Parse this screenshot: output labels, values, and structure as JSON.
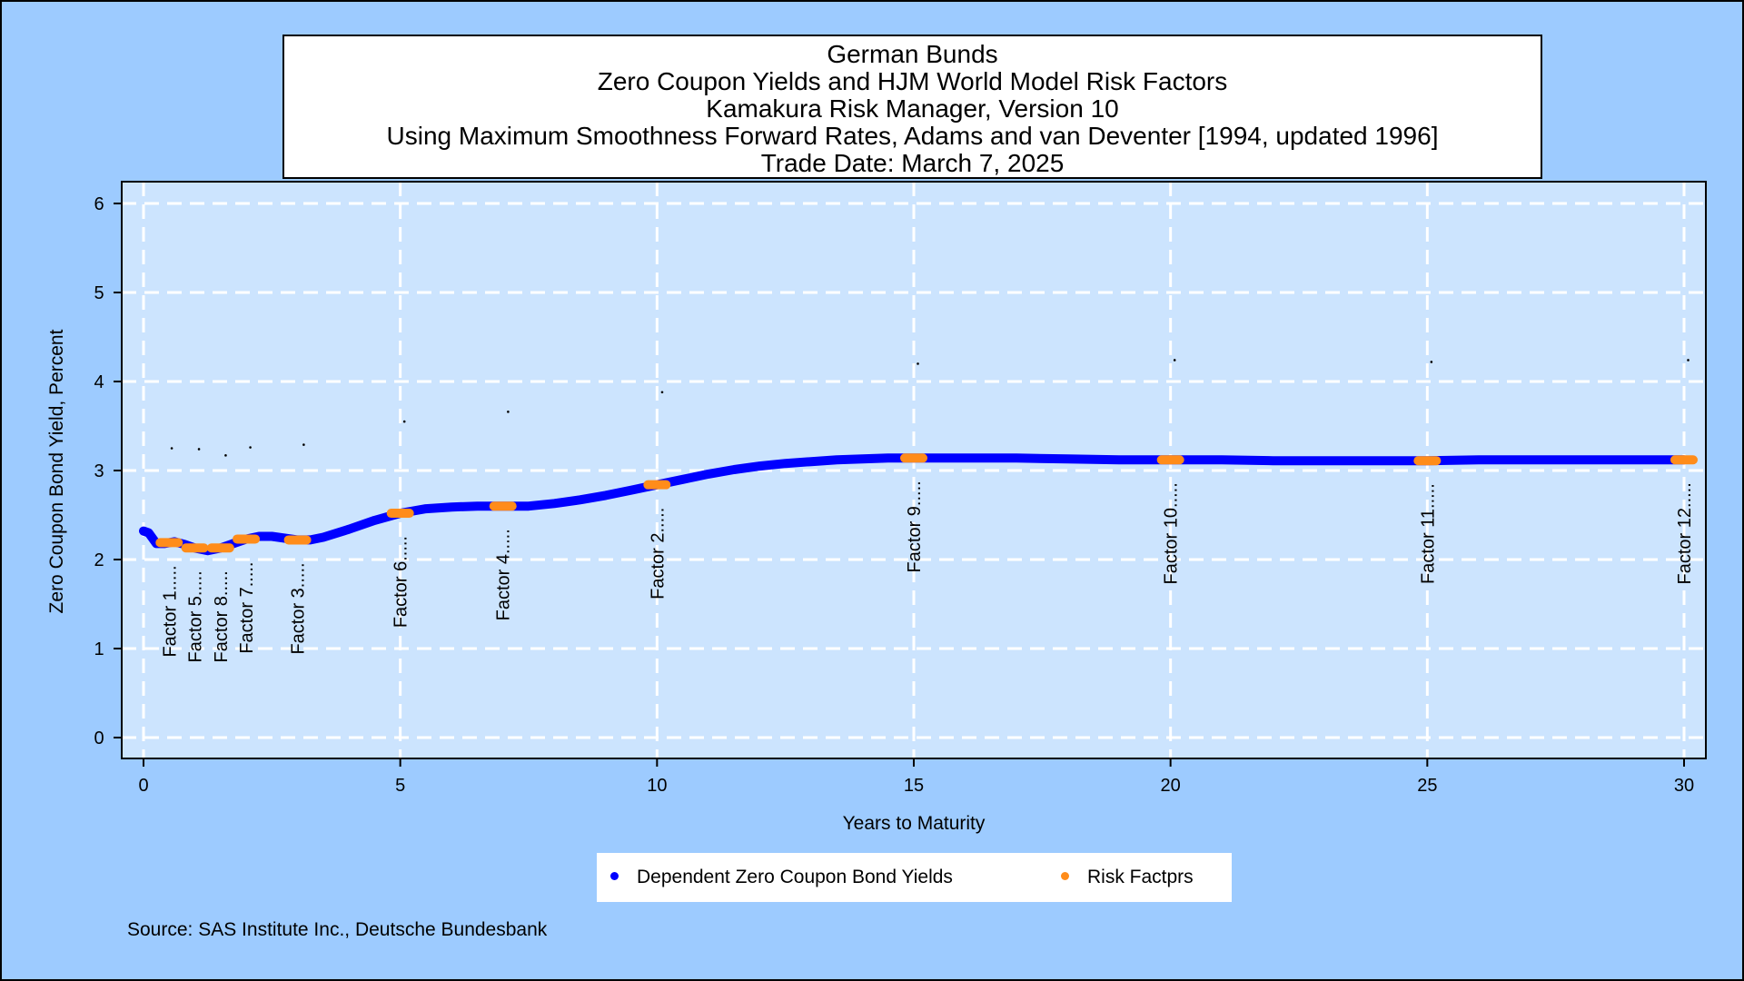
{
  "colors": {
    "background": "#9dcbff",
    "plot_background": "#cce4fe",
    "grid": "#ffffff",
    "yield_series": "#0000ff",
    "factor_series": "#ff8c1a"
  },
  "chart_data": {
    "type": "line",
    "title_lines": [
      "German Bunds",
      "Zero Coupon Yields and HJM World Model Risk Factors",
      "Kamakura Risk Manager, Version 10",
      "Using Maximum Smoothness Forward Rates, Adams and van Deventer [1994, updated 1996]",
      "Trade Date: March 7, 2025"
    ],
    "xlabel": "Years to Maturity",
    "ylabel": "Zero Coupon Bond Yield, Percent",
    "xlim": [
      0,
      30
    ],
    "ylim": [
      0,
      6
    ],
    "xticks": [
      0,
      5,
      10,
      15,
      20,
      25,
      30
    ],
    "yticks": [
      0,
      1,
      2,
      3,
      4,
      5,
      6
    ],
    "grid": true,
    "legend_position": "bottom",
    "series": [
      {
        "name": "Dependent Zero Coupon Bond Yields",
        "color": "#0000ff",
        "x": [
          0,
          0.1,
          0.25,
          0.4,
          0.6,
          0.8,
          1.0,
          1.25,
          1.5,
          1.75,
          2.0,
          2.25,
          2.5,
          2.75,
          3.0,
          3.25,
          3.5,
          4.0,
          4.5,
          5.0,
          5.5,
          6.0,
          6.5,
          7.0,
          7.5,
          8.0,
          8.5,
          9.0,
          9.5,
          10.0,
          10.5,
          11.0,
          11.5,
          12.0,
          12.5,
          13.0,
          13.5,
          14.0,
          14.5,
          15.0,
          16.0,
          17.0,
          18.0,
          19.0,
          20.0,
          21.0,
          22.0,
          23.0,
          24.0,
          25.0,
          26.0,
          27.0,
          28.0,
          29.0,
          30.0
        ],
        "y": [
          2.32,
          2.3,
          2.18,
          2.18,
          2.2,
          2.17,
          2.13,
          2.1,
          2.13,
          2.18,
          2.23,
          2.26,
          2.26,
          2.24,
          2.22,
          2.22,
          2.25,
          2.34,
          2.44,
          2.52,
          2.57,
          2.59,
          2.6,
          2.6,
          2.6,
          2.63,
          2.67,
          2.72,
          2.78,
          2.84,
          2.9,
          2.96,
          3.01,
          3.05,
          3.08,
          3.1,
          3.12,
          3.13,
          3.14,
          3.14,
          3.14,
          3.14,
          3.13,
          3.12,
          3.12,
          3.12,
          3.11,
          3.11,
          3.11,
          3.11,
          3.12,
          3.12,
          3.12,
          3.12,
          3.12
        ]
      },
      {
        "name": "Risk Factprs",
        "color": "#ff8c1a",
        "points": [
          {
            "label": "Factor 1.....",
            "x": 0.5,
            "y": 2.19
          },
          {
            "label": "Factor 5.....",
            "x": 1.0,
            "y": 2.13
          },
          {
            "label": "Factor 8.....",
            "x": 1.5,
            "y": 2.13
          },
          {
            "label": "Factor 7.....",
            "x": 2.0,
            "y": 2.23
          },
          {
            "label": "Factor 3.....",
            "x": 3.0,
            "y": 2.22
          },
          {
            "label": "Factor 6.....",
            "x": 5.0,
            "y": 2.52
          },
          {
            "label": "Factor 4.....",
            "x": 7.0,
            "y": 2.6
          },
          {
            "label": "Factor 2.....",
            "x": 10.0,
            "y": 2.84
          },
          {
            "label": "Factor 9.....",
            "x": 15.0,
            "y": 3.14
          },
          {
            "label": "Factor 10.....",
            "x": 20.0,
            "y": 3.12
          },
          {
            "label": "Factor 11.....",
            "x": 25.0,
            "y": 3.11
          },
          {
            "label": "Factor 12.....",
            "x": 30.0,
            "y": 3.12
          }
        ]
      }
    ],
    "annotation_marks": [
      {
        "x": 0.55,
        "y": 3.25
      },
      {
        "x": 1.08,
        "y": 3.24
      },
      {
        "x": 1.6,
        "y": 3.17
      },
      {
        "x": 2.08,
        "y": 3.26
      },
      {
        "x": 3.12,
        "y": 3.29
      },
      {
        "x": 5.08,
        "y": 3.55
      },
      {
        "x": 7.1,
        "y": 3.66
      },
      {
        "x": 10.1,
        "y": 3.88
      },
      {
        "x": 15.08,
        "y": 4.2
      },
      {
        "x": 20.08,
        "y": 4.24
      },
      {
        "x": 25.08,
        "y": 4.22
      },
      {
        "x": 30.08,
        "y": 4.24
      }
    ]
  },
  "legend": {
    "items": [
      {
        "label": "Dependent Zero Coupon Bond Yields",
        "color": "#0000ff"
      },
      {
        "label": "Risk Factprs",
        "color": "#ff8c1a"
      }
    ]
  },
  "source_note": "Source: SAS Institute Inc., Deutsche Bundesbank"
}
